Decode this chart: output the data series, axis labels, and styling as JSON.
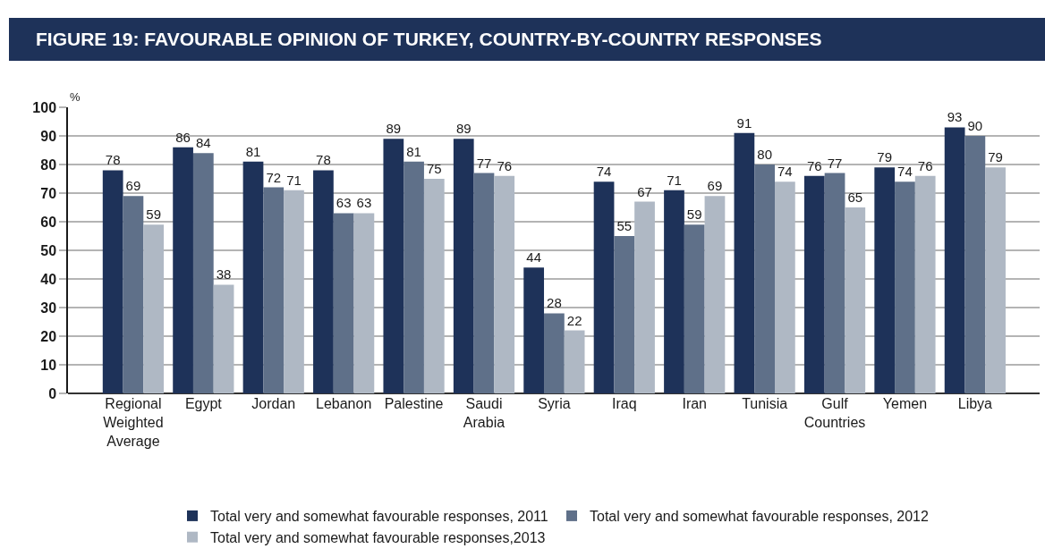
{
  "chart_data": {
    "type": "bar",
    "title": "FIGURE 19: FAVOURABLE OPINION OF TURKEY, COUNTRY-BY-COUNTRY RESPONSES",
    "ylabel": "%",
    "categories": [
      "Regional Weighted Average",
      "Egypt",
      "Jordan",
      "Lebanon",
      "Palestine",
      "Saudi Arabia",
      "Syria",
      "Iraq",
      "Iran",
      "Tunisia",
      "Gulf Countries",
      "Yemen",
      "Libya"
    ],
    "series": [
      {
        "name": "Total very and somewhat favourable responses, 2011",
        "color": "#1e3259",
        "values": [
          78,
          86,
          81,
          78,
          89,
          89,
          44,
          74,
          71,
          91,
          76,
          79,
          93
        ]
      },
      {
        "name": "Total very and somewhat favourable responses, 2012",
        "color": "#5f7089",
        "values": [
          69,
          84,
          72,
          63,
          81,
          77,
          28,
          55,
          59,
          80,
          77,
          74,
          90
        ]
      },
      {
        "name": "Total very and somewhat favourable responses,2013",
        "color": "#afb8c4",
        "values": [
          59,
          38,
          71,
          63,
          75,
          76,
          22,
          67,
          69,
          74,
          65,
          76,
          79
        ]
      }
    ],
    "ylim": [
      0,
      100
    ],
    "yticks": [
      0,
      10,
      20,
      30,
      40,
      50,
      60,
      70,
      80,
      90,
      100
    ],
    "grid": "y",
    "legend": "bottom",
    "data_labels": true
  }
}
